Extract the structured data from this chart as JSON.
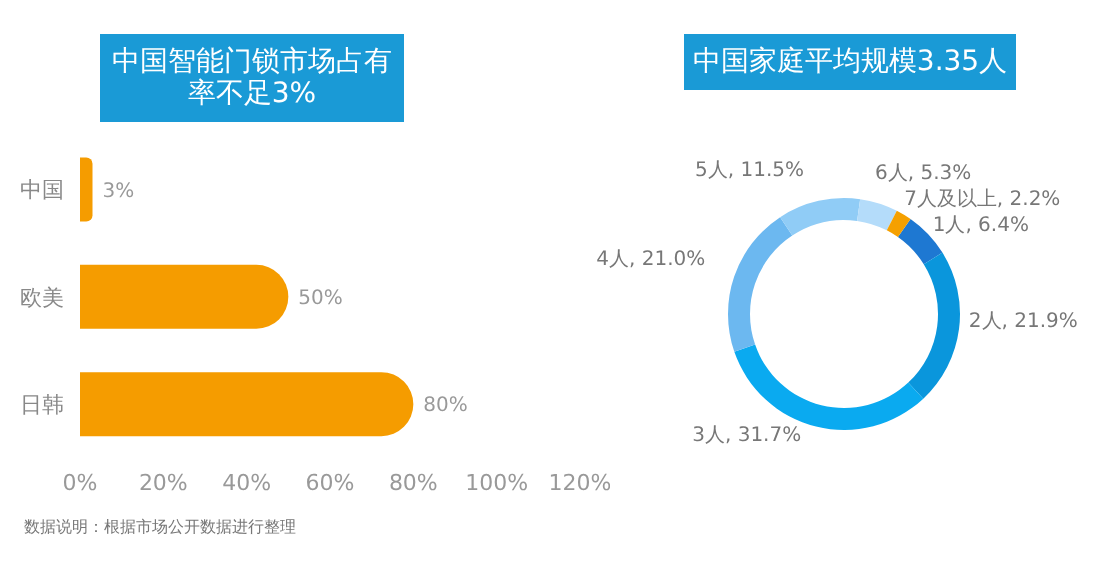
{
  "chart_data": [
    {
      "type": "bar",
      "orientation": "horizontal",
      "title": "中国智能门锁市场占有率不足3%",
      "categories": [
        "中国",
        "欧美",
        "日韩"
      ],
      "values": [
        3,
        50,
        80
      ],
      "color": "#f59c00",
      "value_labels": [
        "3%",
        "50%",
        "80%"
      ],
      "xlim": [
        0,
        120
      ],
      "xticks": [
        {
          "value": 0,
          "label": "0%"
        },
        {
          "value": 20,
          "label": "20%"
        },
        {
          "value": 40,
          "label": "40%"
        },
        {
          "value": 60,
          "label": "60%"
        },
        {
          "value": 80,
          "label": "80%"
        },
        {
          "value": 100,
          "label": "100%"
        },
        {
          "value": 120,
          "label": "120%"
        }
      ],
      "annotations": [
        "数据说明：根据市场公开数据进行整理"
      ]
    },
    {
      "type": "donut",
      "title": "中国家庭平均规模3.35人",
      "categories": [
        "1人",
        "2人",
        "3人",
        "4人",
        "5人",
        "6人",
        "7人及以上"
      ],
      "values": [
        6.4,
        21.9,
        31.7,
        21.0,
        11.5,
        5.3,
        2.2
      ],
      "colors": [
        "#1e78d2",
        "#0a96dc",
        "#0aaaf0",
        "#6cb8f0",
        "#90ccf6",
        "#b4dcfa",
        "#f5a000"
      ],
      "value_labels": [
        "6.4%",
        "21.9%",
        "31.7%",
        "21.0%",
        "11.5%",
        "5.3%",
        "2.2%"
      ]
    }
  ]
}
